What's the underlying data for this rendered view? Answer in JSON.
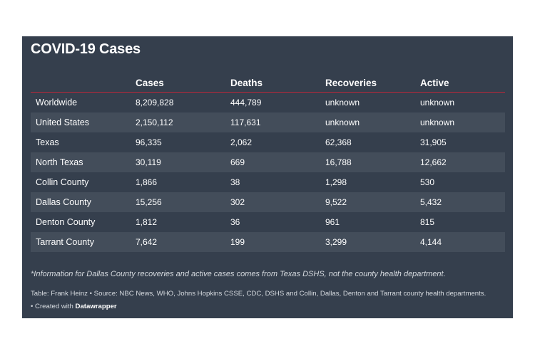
{
  "title": "COVID-19 Cases",
  "columns": [
    "",
    "Cases",
    "Deaths",
    "Recoveries",
    "Active"
  ],
  "chart_data": {
    "type": "table",
    "title": "COVID-19 Cases",
    "columns": [
      "",
      "Cases",
      "Deaths",
      "Recoveries",
      "Active"
    ],
    "rows": [
      [
        "Worldwide",
        "8,209,828",
        "444,789",
        "unknown",
        "unknown"
      ],
      [
        "United States",
        "2,150,112",
        "117,631",
        "unknown",
        "unknown"
      ],
      [
        "Texas",
        "96,335",
        "2,062",
        "62,368",
        "31,905"
      ],
      [
        "North Texas",
        "30,119",
        "669",
        "16,788",
        "12,662"
      ],
      [
        "Collin County",
        "1,866",
        "38",
        "1,298",
        "530"
      ],
      [
        "Dallas County",
        "15,256",
        "302",
        "9,522",
        "5,432"
      ],
      [
        "Denton County",
        "1,812",
        "36",
        "961",
        "815"
      ],
      [
        "Tarrant County",
        "7,642",
        "199",
        "3,299",
        "4,144"
      ]
    ]
  },
  "footnote": "*Information for Dallas County recoveries and active cases comes from Texas DSHS, not the county health department.",
  "source": "Table: Frank Heinz • Source: NBC News, WHO, Johns Hopkins CSSE, CDC, DSHS and Collin, Dallas, Denton and Tarrant county health departments.",
  "credit_prefix": "• Created with ",
  "credit_brand": "Datawrapper",
  "colors": {
    "card_background": "#353f4d",
    "stripe_background": "#434d5a",
    "header_rule": "#b9273a",
    "text": "#ffffff",
    "muted_text": "#d7dbe0"
  }
}
